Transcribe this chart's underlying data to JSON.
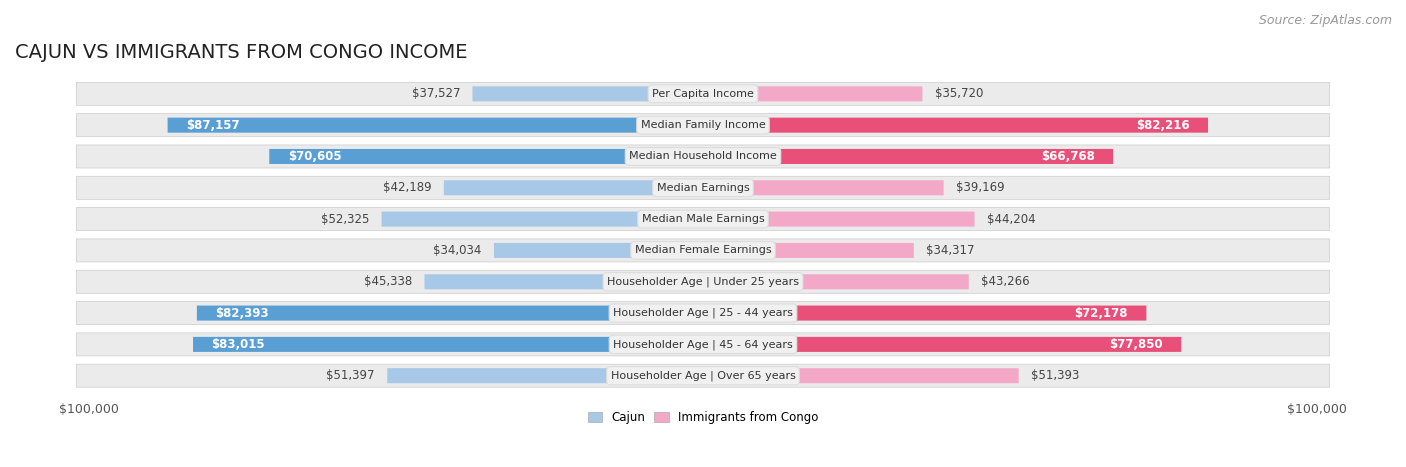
{
  "title": "CAJUN VS IMMIGRANTS FROM CONGO INCOME",
  "source": "Source: ZipAtlas.com",
  "max_value": 100000,
  "categories": [
    "Per Capita Income",
    "Median Family Income",
    "Median Household Income",
    "Median Earnings",
    "Median Male Earnings",
    "Median Female Earnings",
    "Householder Age | Under 25 years",
    "Householder Age | 25 - 44 years",
    "Householder Age | 45 - 64 years",
    "Householder Age | Over 65 years"
  ],
  "cajun_values": [
    37527,
    87157,
    70605,
    42189,
    52325,
    34034,
    45338,
    82393,
    83015,
    51397
  ],
  "congo_values": [
    35720,
    82216,
    66768,
    39169,
    44204,
    34317,
    43266,
    72178,
    77850,
    51393
  ],
  "cajun_color_light": "#a8c8e8",
  "cajun_color_dark": "#5a9fd4",
  "congo_color_light": "#f4a8c8",
  "congo_color_dark": "#e8507a",
  "cajun_threshold": 55000,
  "congo_threshold": 55000,
  "row_bg_color": "#ebebeb",
  "label_box_color": "#f0f0f0",
  "label_box_edge_color": "#dddddd",
  "title_fontsize": 14,
  "source_fontsize": 9,
  "axis_label_fontsize": 9,
  "bar_label_fontsize": 8.5,
  "cat_fontsize": 8,
  "figure_bg": "#ffffff",
  "legend_cajun": "Cajun",
  "legend_congo": "Immigrants from Congo"
}
